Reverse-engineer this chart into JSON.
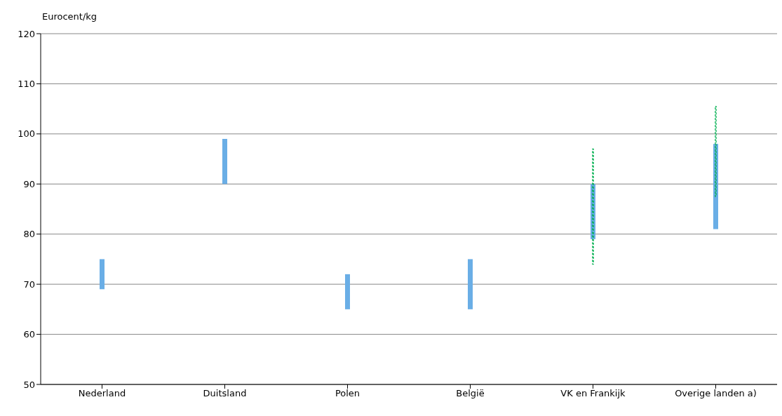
{
  "chart_data": {
    "type": "bar",
    "ylabel": "Eurocent/kg",
    "categories": [
      "Nederland",
      "Duitsland",
      "Polen",
      "België",
      "VK en Frankijk",
      "Overige landen a)"
    ],
    "series": [
      {
        "color": "#6aaee6",
        "base": [
          69,
          90,
          65,
          65,
          79,
          81
        ],
        "values": [
          6,
          9,
          7,
          10,
          11,
          17
        ]
      },
      {
        "color": "#00b050",
        "line_style": "dashed",
        "base": [
          null,
          null,
          null,
          null,
          74,
          87.5
        ],
        "values": [
          null,
          null,
          null,
          null,
          23,
          18
        ]
      }
    ],
    "ylim": [
      50,
      120
    ],
    "yticks": [
      50,
      60,
      70,
      80,
      90,
      100,
      110,
      120
    ],
    "grid": "y",
    "legend": false
  }
}
